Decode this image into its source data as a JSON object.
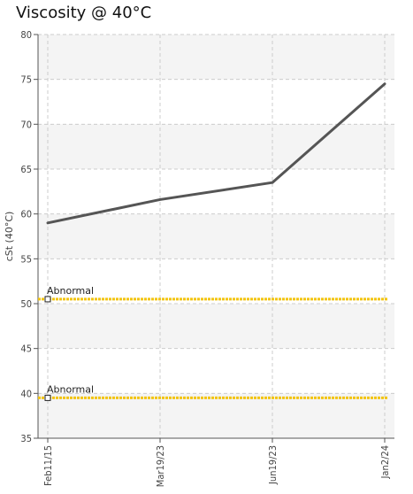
{
  "chart_data": {
    "type": "line",
    "title": "Viscosity @ 40°C",
    "ylabel": "cSt (40°C)",
    "xlabel": "",
    "ylim": [
      35,
      80
    ],
    "y_ticks": [
      35,
      40,
      45,
      50,
      55,
      60,
      65,
      70,
      75,
      80
    ],
    "categories": [
      "Feb11/15",
      "Mar19/23",
      "Jun19/23",
      "Jan2/24"
    ],
    "series": [
      {
        "values": [
          59.0,
          61.6,
          63.5,
          74.5
        ],
        "color": "#555555"
      }
    ],
    "limits": [
      {
        "label": "Abnormal",
        "value": 50.5,
        "color": "#f2c40f"
      },
      {
        "label": "Abnormal",
        "value": 39.5,
        "color": "#f2c40f"
      }
    ],
    "grid": true,
    "band_color": "#f4f4f4"
  }
}
